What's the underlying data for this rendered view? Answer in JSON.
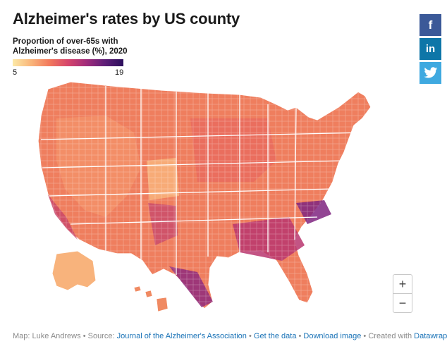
{
  "title": "Alzheimer's rates by US county",
  "legend": {
    "title_line1": "Proportion of over-65s with",
    "title_line2": "Alzheimer's disease (%), 2020",
    "min": "5",
    "max": "19",
    "colors": [
      "#fce9a6",
      "#f9b57a",
      "#f2785c",
      "#d6456b",
      "#a12c7b",
      "#5e1e78",
      "#2c0f5c"
    ]
  },
  "social": {
    "facebook": "f",
    "linkedin": "in",
    "twitter": "twitter-bird-icon"
  },
  "zoom": {
    "in": "+",
    "out": "−"
  },
  "footer": {
    "credit": "Map: Luke Andrews",
    "source_prefix": "Source:",
    "source": "Journal of the Alzheimer's Association",
    "get_data": "Get the data",
    "download": "Download image",
    "created_prefix": "Created with",
    "tool": "Datawrapper",
    "sep": "•"
  },
  "map": {
    "region": "United States (counties, incl. Alaska and Hawaii)",
    "scale_min_pct": 5,
    "scale_max_pct": 19
  }
}
